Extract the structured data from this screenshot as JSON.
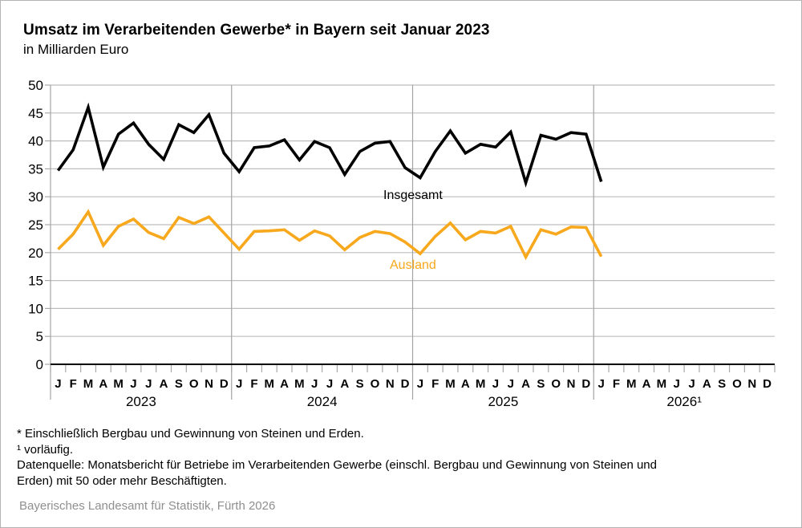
{
  "header": {
    "title": "Umsatz im Verarbeitenden Gewerbe* in Bayern seit Januar 2023",
    "subtitle": "in Milliarden Euro"
  },
  "chart_data": {
    "type": "line",
    "title": "Umsatz im Verarbeitenden Gewerbe* in Bayern seit Januar 2023",
    "unit_label": "in Milliarden Euro",
    "ylim": [
      0,
      50
    ],
    "ytick_step": 5,
    "grid": true,
    "legend_position": "inline-labels",
    "month_labels": [
      "J",
      "F",
      "M",
      "A",
      "M",
      "J",
      "J",
      "A",
      "S",
      "O",
      "N",
      "D"
    ],
    "year_labels": [
      "2023",
      "2024",
      "2025",
      "2026¹"
    ],
    "series": [
      {
        "name": "Insgesamt",
        "color": "#000000",
        "values": [
          34.7,
          38.4,
          46.0,
          35.3,
          41.2,
          43.2,
          39.4,
          36.7,
          42.9,
          41.5,
          44.7,
          37.8,
          34.5,
          38.8,
          39.1,
          40.2,
          36.6,
          39.9,
          38.8,
          34.0,
          38.1,
          39.6,
          39.9,
          35.2,
          33.4,
          38.1,
          41.8,
          37.8,
          39.4,
          38.9,
          41.6,
          32.5,
          41.0,
          40.3,
          41.5,
          41.2,
          32.7
        ]
      },
      {
        "name": "Ausland",
        "color": "#F7A81C",
        "values": [
          20.6,
          23.3,
          27.3,
          21.3,
          24.7,
          26.0,
          23.6,
          22.5,
          26.3,
          25.2,
          26.4,
          23.5,
          20.6,
          23.8,
          23.9,
          24.1,
          22.2,
          23.9,
          23.0,
          20.5,
          22.7,
          23.8,
          23.4,
          21.9,
          19.8,
          22.9,
          25.3,
          22.3,
          23.8,
          23.5,
          24.7,
          19.2,
          24.1,
          23.3,
          24.6,
          24.5,
          19.3
        ]
      }
    ]
  },
  "footnotes": {
    "asterisk": "* Einschließlich Bergbau und Gewinnung von Steinen und Erden.",
    "superscript1": "¹ vorläufig.",
    "source_line1": "Datenquelle: Monatsbericht für Betriebe im Verarbeitenden Gewerbe (einschl. Bergbau und Gewinnung von Steinen und",
    "source_line2": "Erden) mit 50 oder mehr Beschäftigten."
  },
  "credit": "Bayerisches Landesamt für Statistik, Fürth 2026",
  "colors": {
    "insgesamt_line": "#000000",
    "ausland_line": "#F7A81C",
    "gridline": "#bdbdbd",
    "year_separator": "#a3a3a3",
    "tick": "#a9a9a9",
    "zero_axis": "#000000",
    "credit_text": "#8f8f8f"
  }
}
